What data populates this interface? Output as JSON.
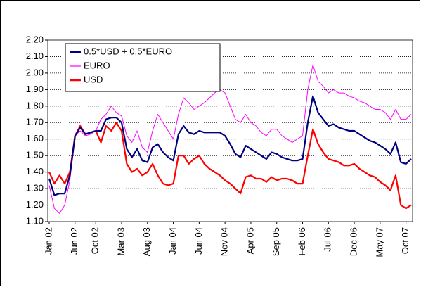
{
  "chart_data": {
    "type": "line",
    "categories": [
      "Jan 02",
      null,
      null,
      null,
      null,
      "Jun 02",
      null,
      null,
      null,
      "Oct 02",
      null,
      null,
      null,
      null,
      "Mar 03",
      null,
      null,
      null,
      null,
      "Aug 03",
      null,
      null,
      null,
      null,
      "Jan 04",
      null,
      null,
      null,
      null,
      "Jun 04",
      null,
      null,
      null,
      null,
      "Nov 04",
      null,
      null,
      null,
      null,
      "Apr 05",
      null,
      null,
      null,
      null,
      "Sep 05",
      null,
      null,
      null,
      null,
      "Feb 06",
      null,
      null,
      null,
      null,
      "Jul 06",
      null,
      null,
      null,
      null,
      "Dec 06",
      null,
      null,
      null,
      null,
      "May 07",
      null,
      null,
      null,
      null,
      "Oct 07",
      null
    ],
    "series": [
      {
        "name": "0.5*USD + 0.5*EURO",
        "color": "#000080",
        "values": [
          1.36,
          1.26,
          1.27,
          1.27,
          1.38,
          1.62,
          1.67,
          1.63,
          1.64,
          1.65,
          1.65,
          1.72,
          1.73,
          1.73,
          1.7,
          1.54,
          1.49,
          1.54,
          1.47,
          1.46,
          1.55,
          1.57,
          1.52,
          1.49,
          1.47,
          1.63,
          1.68,
          1.64,
          1.63,
          1.65,
          1.64,
          1.64,
          1.64,
          1.64,
          1.62,
          1.57,
          1.51,
          1.49,
          1.56,
          1.54,
          1.52,
          1.5,
          1.48,
          1.52,
          1.51,
          1.49,
          1.48,
          1.47,
          1.47,
          1.48,
          1.7,
          1.86,
          1.76,
          1.72,
          1.68,
          1.69,
          1.67,
          1.66,
          1.65,
          1.65,
          1.63,
          1.61,
          1.59,
          1.58,
          1.56,
          1.54,
          1.51,
          1.58,
          1.46,
          1.45,
          1.48
        ]
      },
      {
        "name": "EURO",
        "color": "#ff00ff",
        "values": [
          1.32,
          1.18,
          1.15,
          1.2,
          1.35,
          1.62,
          1.65,
          1.62,
          1.63,
          1.65,
          1.72,
          1.75,
          1.8,
          1.76,
          1.74,
          1.62,
          1.58,
          1.65,
          1.55,
          1.52,
          1.65,
          1.75,
          1.7,
          1.65,
          1.6,
          1.75,
          1.85,
          1.82,
          1.78,
          1.8,
          1.82,
          1.85,
          1.88,
          1.9,
          1.88,
          1.8,
          1.72,
          1.7,
          1.75,
          1.7,
          1.68,
          1.64,
          1.62,
          1.66,
          1.66,
          1.62,
          1.6,
          1.58,
          1.6,
          1.62,
          1.9,
          2.05,
          1.95,
          1.92,
          1.88,
          1.9,
          1.88,
          1.88,
          1.86,
          1.85,
          1.83,
          1.82,
          1.8,
          1.78,
          1.78,
          1.76,
          1.72,
          1.78,
          1.72,
          1.72,
          1.75
        ]
      },
      {
        "name": "USD",
        "color": "#ff0000",
        "values": [
          1.4,
          1.33,
          1.38,
          1.33,
          1.4,
          1.62,
          1.68,
          1.63,
          1.64,
          1.65,
          1.58,
          1.68,
          1.65,
          1.7,
          1.65,
          1.45,
          1.4,
          1.42,
          1.38,
          1.4,
          1.45,
          1.38,
          1.33,
          1.32,
          1.33,
          1.5,
          1.5,
          1.45,
          1.48,
          1.5,
          1.45,
          1.42,
          1.4,
          1.38,
          1.35,
          1.33,
          1.3,
          1.27,
          1.37,
          1.38,
          1.36,
          1.36,
          1.34,
          1.37,
          1.35,
          1.36,
          1.36,
          1.35,
          1.33,
          1.33,
          1.5,
          1.66,
          1.57,
          1.52,
          1.48,
          1.47,
          1.46,
          1.44,
          1.44,
          1.45,
          1.42,
          1.4,
          1.38,
          1.37,
          1.34,
          1.32,
          1.29,
          1.38,
          1.2,
          1.18,
          1.2
        ]
      }
    ],
    "ylim": [
      1.1,
      2.2
    ],
    "yticks": [
      {
        "value": 1.1,
        "label": "1.10"
      },
      {
        "value": 1.2,
        "label": "1.20"
      },
      {
        "value": 1.3,
        "label": "1.30"
      },
      {
        "value": 1.4,
        "label": "1.40"
      },
      {
        "value": 1.5,
        "label": "1.50"
      },
      {
        "value": 1.6,
        "label": "1.60"
      },
      {
        "value": 1.7,
        "label": "1.70"
      },
      {
        "value": 1.8,
        "label": "1.80"
      },
      {
        "value": 1.9,
        "label": "1.90"
      },
      {
        "value": 2.0,
        "label": "2.00"
      },
      {
        "value": 2.1,
        "label": "2.10"
      },
      {
        "value": 2.2,
        "label": "2.20"
      }
    ],
    "grid": true,
    "legend": "upper left"
  }
}
